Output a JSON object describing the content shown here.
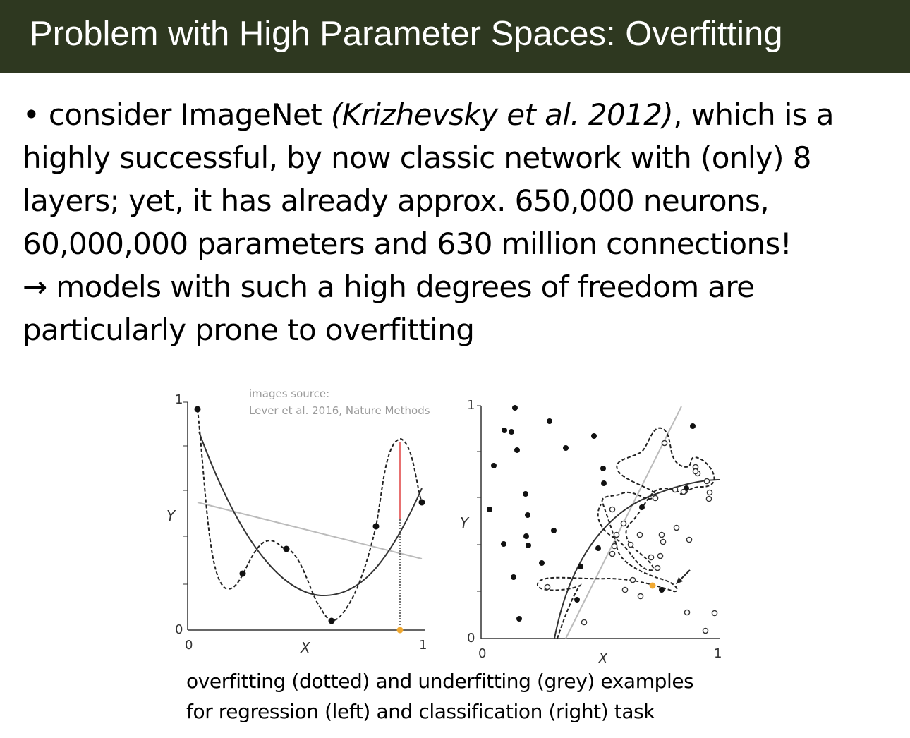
{
  "slide": {
    "title": "Problem with High Parameter Spaces: Overfitting",
    "bullet_prefix": "• consider ImageNet ",
    "bullet_citation": "(Krizhevsky et al. 2012)",
    "bullet_line1_end": ", which is a",
    "bullet_line2": "highly successful, by now classic network with (only) 8",
    "bullet_line3": "layers; yet, it has already approx. 650,000 neurons,",
    "bullet_line4": "60,000,000 parameters and 630 million connections!",
    "arrow_glyph": "→",
    "bullet_line5": " models with such a high degrees of freedom are",
    "bullet_line6": "particularly prone to overfitting",
    "image_source_line1": "images source:",
    "image_source_line2": "Lever et al. 2016, Nature Methods",
    "caption_line1": "overfitting (dotted) and underfitting (grey) examples",
    "caption_line2": "for regression (left) and classification (right) task"
  },
  "figure": {
    "left_panel": {
      "y_label": "Y",
      "x_label": "X",
      "y_tick_top": "1",
      "y_tick_bottom": "0",
      "x_tick_left": "0",
      "x_tick_right": "1"
    },
    "right_panel": {
      "y_label": "Y",
      "x_label": "X",
      "y_tick_top": "1",
      "y_tick_bottom": "0",
      "x_tick_left": "0",
      "x_tick_right": "1"
    },
    "colors": {
      "highlight_point": "#f0a830",
      "vertical_marker": "#e04040",
      "underfit_line": "#bbbbbb"
    }
  }
}
